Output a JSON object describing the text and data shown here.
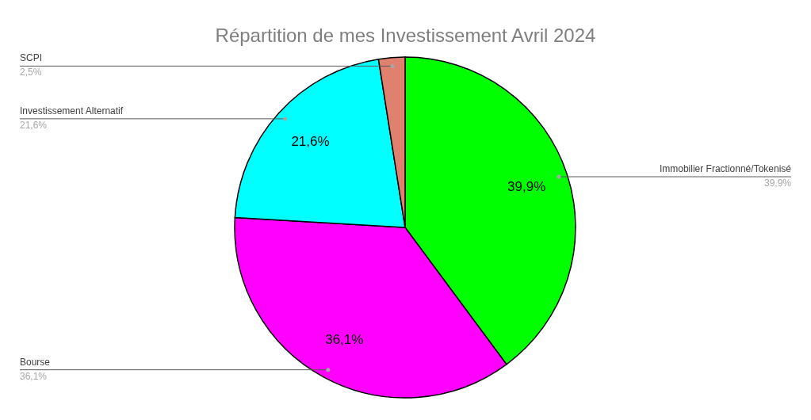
{
  "chart_data": {
    "type": "pie",
    "title": "Répartition de mes Investissement Avril 2024",
    "categories": [
      "Immobilier Fractionné/Tokenisé",
      "Bourse",
      "Investissement Alternatif",
      "SCPI"
    ],
    "values": [
      39.9,
      36.1,
      21.6,
      2.5
    ],
    "colors": [
      "#00ff00",
      "#ff00ff",
      "#00ffff",
      "#e0806e"
    ],
    "value_labels": [
      "39,9%",
      "36,1%",
      "21,6%",
      "2,5%"
    ]
  }
}
